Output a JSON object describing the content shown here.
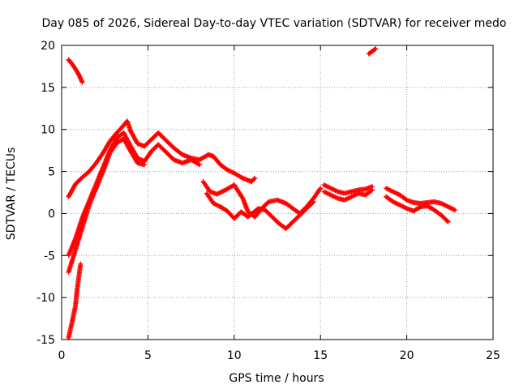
{
  "chart_data": {
    "type": "scatter",
    "title": "Day 085 of 2026, Sidereal Day-to-day VTEC variation (SDTVAR) for receiver medo",
    "xlabel": "GPS time / hours",
    "ylabel": "SDTVAR / TECUs",
    "xlim": [
      0,
      25
    ],
    "ylim": [
      -15,
      20
    ],
    "xticks": [
      0,
      5,
      10,
      15,
      20,
      25
    ],
    "yticks": [
      -15,
      -10,
      -5,
      0,
      5,
      10,
      15,
      20
    ],
    "xtick_labels": [
      "0",
      "5",
      "10",
      "15",
      "20",
      "25"
    ],
    "ytick_labels": [
      "-15",
      "-10",
      "-5",
      "0",
      "5",
      "10",
      "15",
      "20"
    ],
    "grid": true,
    "marker": "+",
    "color": "#ff0000",
    "series": [
      {
        "name": "track-upper-start",
        "points": [
          [
            0.4,
            18.3
          ],
          [
            0.6,
            17.8
          ],
          [
            0.8,
            17.2
          ],
          [
            1.0,
            16.5
          ],
          [
            1.2,
            15.6
          ]
        ]
      },
      {
        "name": "track-late",
        "points": [
          [
            17.8,
            19.0
          ],
          [
            18.0,
            19.3
          ],
          [
            18.2,
            19.6
          ]
        ]
      },
      {
        "name": "track-a",
        "points": [
          [
            0.4,
            2.0
          ],
          [
            0.8,
            3.5
          ],
          [
            1.2,
            4.3
          ],
          [
            1.6,
            5.0
          ],
          [
            2.0,
            6.0
          ],
          [
            2.4,
            7.2
          ],
          [
            2.8,
            8.6
          ],
          [
            3.2,
            9.6
          ],
          [
            3.6,
            10.5
          ],
          [
            3.8,
            11.0
          ],
          [
            4.0,
            9.8
          ],
          [
            4.4,
            8.3
          ],
          [
            4.8,
            8.0
          ],
          [
            5.2,
            8.8
          ],
          [
            5.6,
            9.6
          ],
          [
            6.0,
            8.8
          ],
          [
            6.5,
            7.8
          ],
          [
            7.0,
            7.0
          ],
          [
            7.5,
            6.6
          ],
          [
            8.0,
            6.4
          ],
          [
            8.5,
            7.0
          ],
          [
            8.8,
            6.8
          ],
          [
            9.2,
            5.8
          ],
          [
            9.6,
            5.2
          ],
          [
            10.0,
            4.8
          ],
          [
            10.5,
            4.2
          ],
          [
            11.0,
            3.8
          ],
          [
            11.2,
            4.2
          ]
        ]
      },
      {
        "name": "track-b",
        "points": [
          [
            0.4,
            -5.0
          ],
          [
            0.8,
            -3.0
          ],
          [
            1.2,
            -0.5
          ],
          [
            1.6,
            1.5
          ],
          [
            2.0,
            3.5
          ],
          [
            2.4,
            5.5
          ],
          [
            2.8,
            7.5
          ],
          [
            3.2,
            9.0
          ],
          [
            3.6,
            9.6
          ],
          [
            4.0,
            8.0
          ],
          [
            4.4,
            6.6
          ],
          [
            4.8,
            6.2
          ],
          [
            5.2,
            7.4
          ],
          [
            5.6,
            8.2
          ],
          [
            6.0,
            7.4
          ],
          [
            6.5,
            6.4
          ],
          [
            7.0,
            6.0
          ],
          [
            7.5,
            6.4
          ],
          [
            8.0,
            5.8
          ]
        ]
      },
      {
        "name": "track-c",
        "points": [
          [
            0.4,
            -7.0
          ],
          [
            0.7,
            -5.0
          ],
          [
            1.0,
            -3.0
          ],
          [
            1.3,
            -1.0
          ],
          [
            1.6,
            1.0
          ],
          [
            2.0,
            3.0
          ],
          [
            2.4,
            5.0
          ],
          [
            2.8,
            7.2
          ],
          [
            3.2,
            8.4
          ],
          [
            3.6,
            8.9
          ],
          [
            4.0,
            7.4
          ],
          [
            4.4,
            6.0
          ],
          [
            4.8,
            5.8
          ]
        ]
      },
      {
        "name": "track-d",
        "points": [
          [
            0.4,
            -14.8
          ],
          [
            0.6,
            -13.0
          ],
          [
            0.8,
            -11.0
          ],
          [
            0.9,
            -9.0
          ],
          [
            1.0,
            -7.5
          ],
          [
            1.1,
            -6.0
          ]
        ]
      },
      {
        "name": "track-e",
        "points": [
          [
            8.2,
            3.8
          ],
          [
            8.6,
            2.6
          ],
          [
            9.0,
            2.3
          ],
          [
            9.5,
            2.8
          ],
          [
            10.0,
            3.4
          ],
          [
            10.5,
            1.8
          ],
          [
            10.8,
            0.2
          ],
          [
            11.2,
            -0.4
          ],
          [
            11.6,
            0.6
          ],
          [
            12.0,
            1.4
          ],
          [
            12.5,
            1.6
          ],
          [
            13.0,
            1.2
          ],
          [
            13.4,
            0.6
          ],
          [
            13.8,
            0.0
          ],
          [
            14.2,
            0.8
          ],
          [
            14.6,
            1.8
          ],
          [
            15.0,
            3.0
          ]
        ]
      },
      {
        "name": "track-f",
        "points": [
          [
            8.4,
            2.4
          ],
          [
            8.8,
            1.2
          ],
          [
            9.2,
            0.8
          ],
          [
            9.6,
            0.3
          ],
          [
            10.0,
            -0.6
          ],
          [
            10.4,
            0.2
          ],
          [
            10.8,
            -0.4
          ],
          [
            11.4,
            0.6
          ],
          [
            11.8,
            0.4
          ],
          [
            12.2,
            -0.4
          ],
          [
            12.6,
            -1.2
          ],
          [
            13.0,
            -1.8
          ],
          [
            13.4,
            -1.0
          ],
          [
            13.8,
            -0.2
          ],
          [
            14.2,
            0.6
          ],
          [
            14.6,
            1.4
          ]
        ]
      },
      {
        "name": "track-g",
        "points": [
          [
            15.2,
            3.4
          ],
          [
            15.6,
            3.0
          ],
          [
            16.0,
            2.6
          ],
          [
            16.4,
            2.4
          ],
          [
            16.8,
            2.6
          ],
          [
            17.2,
            2.8
          ],
          [
            17.6,
            2.9
          ],
          [
            18.0,
            3.2
          ]
        ]
      },
      {
        "name": "track-h",
        "points": [
          [
            15.2,
            2.6
          ],
          [
            15.6,
            2.2
          ],
          [
            16.0,
            1.8
          ],
          [
            16.4,
            1.6
          ],
          [
            16.8,
            2.0
          ],
          [
            17.2,
            2.4
          ],
          [
            17.6,
            2.2
          ],
          [
            18.0,
            2.8
          ]
        ]
      },
      {
        "name": "track-i",
        "points": [
          [
            18.8,
            3.0
          ],
          [
            19.2,
            2.6
          ],
          [
            19.6,
            2.2
          ],
          [
            20.0,
            1.6
          ],
          [
            20.4,
            1.3
          ],
          [
            20.8,
            1.2
          ],
          [
            21.2,
            1.3
          ],
          [
            21.6,
            1.4
          ],
          [
            22.0,
            1.2
          ],
          [
            22.4,
            0.8
          ],
          [
            22.8,
            0.4
          ]
        ]
      },
      {
        "name": "track-j",
        "points": [
          [
            18.8,
            2.0
          ],
          [
            19.2,
            1.4
          ],
          [
            19.6,
            1.0
          ],
          [
            20.0,
            0.6
          ],
          [
            20.4,
            0.3
          ],
          [
            20.8,
            0.8
          ],
          [
            21.2,
            0.9
          ],
          [
            21.6,
            0.4
          ],
          [
            22.0,
            -0.2
          ],
          [
            22.4,
            -1.0
          ]
        ]
      }
    ]
  }
}
